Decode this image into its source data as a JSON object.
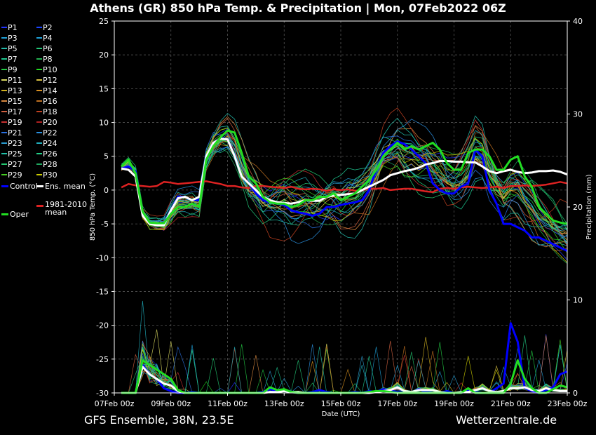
{
  "title": "Athens  (GR)  850 hPa Temp. & Precipitation | Mon, 07Feb2022 06Z",
  "footer": {
    "left": "GFS Ensemble, 38N, 23.5E",
    "right": "Wetterzentrale.de"
  },
  "legend": {
    "members": [
      "P1",
      "P2",
      "P3",
      "P4",
      "P5",
      "P6",
      "P7",
      "P8",
      "P9",
      "P10",
      "P11",
      "P12",
      "P13",
      "P14",
      "P15",
      "P16",
      "P17",
      "P18",
      "P19",
      "P20",
      "P21",
      "P22",
      "P23",
      "P24",
      "P25",
      "P26",
      "P27",
      "P28",
      "P29",
      "P30"
    ],
    "member_colors": [
      "#2233ff",
      "#1a44ff",
      "#1fa0d8",
      "#1fa0d8",
      "#22b8a8",
      "#22c878",
      "#1ec890",
      "#22b050",
      "#22cc44",
      "#22dd22",
      "#d8d860",
      "#d8c040",
      "#d0b020",
      "#d89020",
      "#d88840",
      "#c07020",
      "#d06040",
      "#c04020",
      "#c83030",
      "#b02020",
      "#2a70e0",
      "#2a90e0",
      "#2a9cd0",
      "#20b0c0",
      "#20c0a8",
      "#22d088",
      "#22c870",
      "#20a860",
      "#44cc22",
      "#cccc00"
    ],
    "control": "Control",
    "ens_mean": "Ens. mean",
    "climate": "1981-2010 mean",
    "oper": "Oper"
  },
  "chart_data": {
    "type": "line",
    "xlabel": "Date (UTC)",
    "ylabel_left": "850 hPa Temp. (°C)",
    "ylabel_right": "Precipitation (mm)",
    "x_ticks": [
      "07Feb 00z",
      "09Feb 00z",
      "11Feb 00z",
      "13Feb 00z",
      "15Feb 00z",
      "17Feb 00z",
      "19Feb 00z",
      "21Feb 00z",
      "23Feb 00z"
    ],
    "xlim_hours": [
      0,
      384
    ],
    "ylim_left": [
      -30,
      25
    ],
    "yticks_left": [
      25,
      20,
      15,
      10,
      5,
      0,
      -5,
      -10,
      -15,
      -20,
      -25,
      -30
    ],
    "ylim_right": [
      0,
      40
    ],
    "yticks_right": [
      40,
      30,
      20,
      10,
      0
    ],
    "grid": true,
    "colors": {
      "control": "#0000ff",
      "ens_mean": "#ffffff",
      "climate": "#dd2222",
      "oper": "#22dd22"
    },
    "temp_hours": [
      6,
      12,
      18,
      24,
      30,
      36,
      42,
      48,
      54,
      60,
      66,
      72,
      78,
      84,
      90,
      96,
      102,
      108,
      114,
      120,
      126,
      132,
      138,
      144,
      150,
      156,
      162,
      168,
      174,
      180,
      186,
      192,
      198,
      204,
      210,
      216,
      222,
      228,
      234,
      240,
      246,
      252,
      258,
      264,
      270,
      276,
      282,
      288,
      294,
      300,
      306,
      312,
      318,
      324,
      330,
      336,
      342,
      348,
      354,
      360,
      366,
      372,
      378,
      384
    ],
    "series": [
      {
        "name": "Control",
        "values": [
          3.2,
          3.5,
          2.8,
          -3.5,
          -5.0,
          -5.0,
          -5.0,
          -3.0,
          -1.0,
          -1.0,
          -1.5,
          -1.5,
          5.0,
          7.0,
          7.7,
          7.5,
          5.0,
          2.0,
          1.0,
          -0.5,
          -1.5,
          -1.8,
          -2.0,
          -2.2,
          -3.0,
          -3.3,
          -3.5,
          -3.8,
          -3.5,
          -2.5,
          -2.5,
          -2.2,
          -2.0,
          -1.8,
          -1.5,
          0.0,
          3.0,
          5.5,
          6.5,
          7.2,
          6.8,
          6.0,
          5.0,
          4.0,
          1.0,
          0.0,
          -0.5,
          -0.5,
          0.5,
          1.0,
          6.0,
          5.0,
          0.0,
          -2.0,
          -5.0,
          -5.0,
          -5.5,
          -6.0,
          -7.0,
          -7.0,
          -7.5,
          -8.0,
          -8.5,
          -9.0
        ]
      },
      {
        "name": "Ens. mean",
        "values": [
          3.2,
          3.0,
          2.0,
          -3.8,
          -5.0,
          -5.2,
          -5.2,
          -3.0,
          -1.2,
          -1.0,
          -1.5,
          -1.0,
          5.0,
          7.0,
          7.6,
          7.5,
          5.0,
          2.0,
          1.0,
          0.0,
          -1.0,
          -1.5,
          -1.8,
          -1.9,
          -2.0,
          -1.8,
          -1.5,
          -1.6,
          -1.6,
          -1.0,
          -0.8,
          -0.7,
          -0.6,
          -0.5,
          0.0,
          0.5,
          1.0,
          1.5,
          2.2,
          2.5,
          2.8,
          3.0,
          3.3,
          3.8,
          4.0,
          4.3,
          4.3,
          4.2,
          4.2,
          4.1,
          4.1,
          3.5,
          2.8,
          2.5,
          2.8,
          3.0,
          2.7,
          2.5,
          2.6,
          2.8,
          2.8,
          2.9,
          2.7,
          2.3
        ]
      },
      {
        "name": "1981-2010 mean",
        "values": [
          0.4,
          0.9,
          0.7,
          0.6,
          0.5,
          0.6,
          1.2,
          1.1,
          0.9,
          1.0,
          1.1,
          1.2,
          1.3,
          1.1,
          0.9,
          0.6,
          0.6,
          0.4,
          0.3,
          0.6,
          0.6,
          0.5,
          0.4,
          0.3,
          0.5,
          0.2,
          0.1,
          0.2,
          0.1,
          -0.1,
          0.1,
          0.0,
          0.1,
          -0.1,
          0.0,
          0.2,
          0.2,
          0.3,
          0.0,
          0.1,
          0.2,
          0.2,
          0.0,
          -0.2,
          -0.3,
          0.2,
          0.3,
          0.2,
          0.4,
          0.5,
          0.4,
          0.3,
          0.4,
          0.5,
          0.3,
          0.6,
          0.6,
          0.7,
          0.6,
          0.7,
          0.8,
          1.0,
          1.2,
          1.0
        ]
      },
      {
        "name": "Oper",
        "values": [
          3.5,
          4.5,
          2.5,
          -3.2,
          -4.8,
          -4.9,
          -4.9,
          -3.5,
          -2.5,
          -2.5,
          -2.0,
          -2.5,
          4.5,
          6.5,
          7.8,
          8.8,
          8.5,
          5.5,
          2.0,
          1.0,
          -1.0,
          -1.8,
          -2.0,
          -2.0,
          -2.5,
          -2.2,
          -1.5,
          -1.5,
          -1.0,
          -1.0,
          -0.5,
          -1.5,
          -1.0,
          -0.5,
          0.5,
          1.5,
          3.0,
          5.0,
          6.0,
          7.0,
          6.0,
          6.5,
          6.0,
          6.5,
          7.0,
          6.0,
          4.0,
          3.0,
          3.0,
          5.5,
          6.0,
          6.0,
          5.0,
          3.0,
          3.0,
          4.5,
          5.0,
          2.0,
          0.5,
          -2.5,
          -3.5,
          -4.5,
          -4.8,
          -5.0
        ]
      }
    ],
    "precip_hours": [
      6,
      12,
      18,
      24,
      30,
      36,
      42,
      48,
      54,
      60,
      66,
      72,
      78,
      84,
      90,
      96,
      102,
      108,
      114,
      120,
      126,
      132,
      138,
      144,
      150,
      156,
      162,
      168,
      174,
      180,
      186,
      192,
      198,
      204,
      210,
      216,
      222,
      228,
      234,
      240,
      246,
      252,
      258,
      264,
      270,
      276,
      282,
      288,
      294,
      300,
      306,
      312,
      318,
      324,
      330,
      336,
      342,
      348,
      354,
      360,
      366,
      372,
      378,
      384
    ],
    "precip_series": [
      {
        "name": "Control",
        "values": [
          0,
          0,
          0,
          3.0,
          2.0,
          1.5,
          0.5,
          0.2,
          0,
          0,
          0.1,
          0,
          0,
          0,
          0,
          0,
          0,
          0,
          0,
          0,
          0.1,
          0.4,
          0.2,
          0.2,
          0.1,
          0,
          0,
          0.1,
          0.3,
          0.1,
          0,
          0,
          0,
          0.1,
          0,
          0.2,
          0.1,
          0.4,
          0.2,
          0.1,
          0,
          0,
          0.4,
          0.1,
          0,
          0,
          0.2,
          0,
          0,
          0.3,
          0.1,
          0,
          0,
          0.5,
          1.0,
          7.5,
          5.5,
          0.5,
          0.2,
          0,
          0.3,
          0.6,
          2.0,
          2.3
        ]
      },
      {
        "name": "Ens. mean",
        "values": [
          0,
          0,
          0,
          2.8,
          2.0,
          1.5,
          1.0,
          0.8,
          0.2,
          0,
          0,
          0,
          0,
          0,
          0,
          0,
          0,
          0,
          0,
          0,
          0,
          0.1,
          0.1,
          0.2,
          0.1,
          0.1,
          0,
          0,
          0,
          0,
          0,
          0,
          0,
          0,
          0,
          0,
          0.1,
          0.2,
          0.3,
          0.6,
          0.2,
          0.1,
          0.3,
          0.3,
          0.3,
          0.1,
          0,
          0,
          0.1,
          0.1,
          0.3,
          0.5,
          0.2,
          0.1,
          0.2,
          0.5,
          0.5,
          0.6,
          0.3,
          0.2,
          0.5,
          0.3,
          0.2,
          0.2
        ]
      },
      {
        "name": "Oper",
        "values": [
          0,
          0,
          0,
          3.5,
          3.0,
          2.5,
          2.0,
          1.5,
          0.3,
          0,
          0,
          0,
          0,
          0,
          0,
          0,
          0,
          0,
          0,
          0,
          0,
          0.6,
          0.3,
          0.4,
          0.1,
          0,
          0,
          0,
          0,
          0,
          0,
          0,
          0,
          0,
          0,
          0.1,
          0.2,
          0.2,
          0.1,
          0,
          0,
          0,
          0,
          0,
          0,
          0,
          0,
          0,
          0,
          0.5,
          0,
          0,
          0,
          0,
          0,
          1.0,
          3.5,
          1.5,
          0.5,
          0,
          0,
          0.4,
          0.8,
          0.6
        ]
      }
    ]
  }
}
